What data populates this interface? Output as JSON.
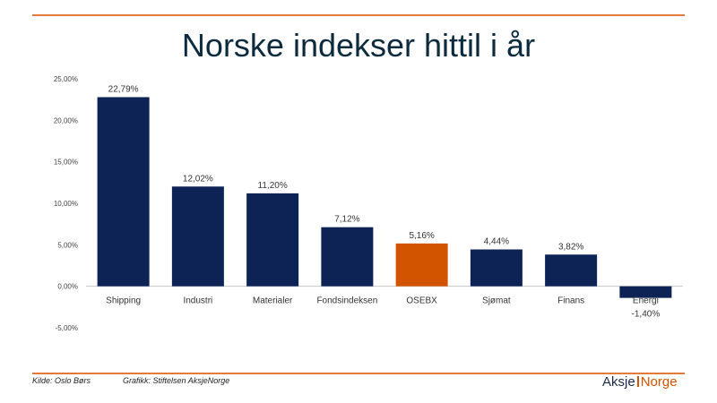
{
  "title": "Norske indekser hittil i år",
  "colors": {
    "accent": "#e07b39",
    "bar": "#0d2356",
    "highlight": "#d35400"
  },
  "footer": {
    "source": "Kilde: Oslo Børs",
    "graphics": "Grafikk: Stiftelsen AksjeNorge",
    "logo_part1": "Aksje",
    "logo_part2": "Norge"
  },
  "chart_data": {
    "type": "bar",
    "title": "Norske indekser hittil i år",
    "xlabel": "",
    "ylabel": "",
    "categories": [
      "Shipping",
      "Industri",
      "Materialer",
      "Fondsindeksen",
      "OSEBX",
      "Sjømat",
      "Finans",
      "Energi"
    ],
    "values": [
      22.79,
      12.02,
      11.2,
      7.12,
      5.16,
      4.44,
      3.82,
      -1.4
    ],
    "data_labels": [
      "22,79%",
      "12,02%",
      "11,20%",
      "7,12%",
      "5,16%",
      "4,44%",
      "3,82%",
      "-1,40%"
    ],
    "highlight_index": 4,
    "ylim": [
      -5,
      25
    ],
    "yticks": [
      -5,
      0,
      5,
      10,
      15,
      20,
      25
    ],
    "ytick_labels": [
      "-5,00%",
      "0,00%",
      "5,00%",
      "10,00%",
      "15,00%",
      "20,00%",
      "25,00%"
    ],
    "grid": false,
    "legend": "none"
  }
}
